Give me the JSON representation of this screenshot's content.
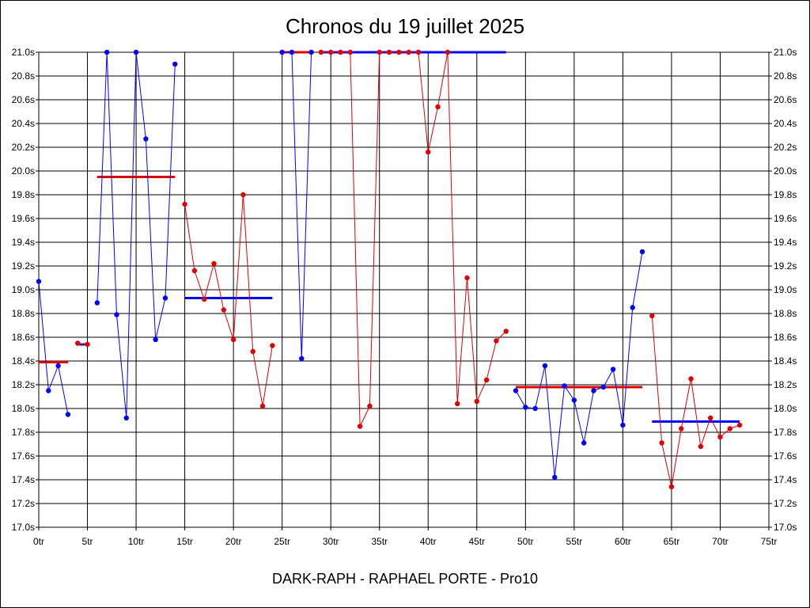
{
  "chart_data": {
    "type": "line",
    "title": "Chronos du 19 juillet 2025",
    "footer": "DARK-RAPH - RAPHAEL PORTE - Pro10",
    "xlim": [
      0,
      75
    ],
    "ylim": [
      17.0,
      21.0
    ],
    "x_ticks": [
      0,
      5,
      10,
      15,
      20,
      25,
      30,
      35,
      40,
      45,
      50,
      55,
      60,
      65,
      70,
      75
    ],
    "x_tick_labels": [
      "0tr",
      "5tr",
      "10tr",
      "15tr",
      "20tr",
      "25tr",
      "30tr",
      "35tr",
      "40tr",
      "45tr",
      "50tr",
      "55tr",
      "60tr",
      "65tr",
      "70tr",
      "75tr"
    ],
    "y_ticks": [
      17.0,
      17.2,
      17.4,
      17.6,
      17.8,
      18.0,
      18.2,
      18.4,
      18.6,
      18.8,
      19.0,
      19.2,
      19.4,
      19.6,
      19.8,
      20.0,
      20.2,
      20.4,
      20.6,
      20.8,
      21.0
    ],
    "y_tick_labels": [
      "17.0s",
      "17.2s",
      "17.4s",
      "17.6s",
      "17.8s",
      "18.0s",
      "18.2s",
      "18.4s",
      "18.6s",
      "18.8s",
      "19.0s",
      "19.2s",
      "19.4s",
      "19.6s",
      "19.8s",
      "20.0s",
      "20.2s",
      "20.4s",
      "20.6s",
      "20.8s",
      "21.0s"
    ],
    "grid": true,
    "segments": [
      {
        "color": "#0000ff",
        "points": [
          [
            0,
            19.07
          ],
          [
            1,
            18.15
          ],
          [
            2,
            18.36
          ],
          [
            3,
            17.95
          ]
        ],
        "average": {
          "x": [
            0,
            3
          ],
          "y": 18.39,
          "color": "#e00000"
        }
      },
      {
        "color": "#e00000",
        "points": [
          [
            4,
            18.55
          ],
          [
            5,
            18.54
          ]
        ],
        "average": {
          "x": [
            4,
            5
          ],
          "y": 18.54,
          "color": "#0000ff"
        }
      },
      {
        "color": "#0000ff",
        "points": [
          [
            6,
            18.89
          ],
          [
            7,
            21.0
          ],
          [
            8,
            18.79
          ],
          [
            9,
            17.92
          ],
          [
            10,
            21.0
          ],
          [
            11,
            20.27
          ],
          [
            12,
            18.58
          ],
          [
            13,
            18.93
          ],
          [
            14,
            20.9
          ]
        ],
        "average": {
          "x": [
            6,
            14
          ],
          "y": 19.95,
          "color": "#e00000"
        }
      },
      {
        "color": "#e00000",
        "points": [
          [
            15,
            19.72
          ],
          [
            16,
            19.16
          ],
          [
            17,
            18.92
          ],
          [
            18,
            19.22
          ],
          [
            19,
            18.83
          ],
          [
            20,
            18.58
          ],
          [
            21,
            19.8
          ],
          [
            22,
            18.48
          ],
          [
            23,
            18.02
          ],
          [
            24,
            18.53
          ]
        ],
        "average": {
          "x": [
            15,
            24
          ],
          "y": 18.93,
          "color": "#0000ff"
        }
      },
      {
        "color": "#0000ff",
        "points": [
          [
            25,
            21.0
          ],
          [
            26,
            21.0
          ],
          [
            27,
            18.42
          ],
          [
            28,
            21.0
          ]
        ],
        "average": {
          "x": [
            25,
            28
          ],
          "y": 21.0,
          "color": "#e00000"
        }
      },
      {
        "color": "#e00000",
        "points": [
          [
            29,
            21.0
          ],
          [
            30,
            21.0
          ],
          [
            31,
            21.0
          ],
          [
            32,
            21.0
          ],
          [
            33,
            17.85
          ],
          [
            34,
            18.02
          ],
          [
            35,
            21.0
          ],
          [
            36,
            21.0
          ],
          [
            37,
            21.0
          ],
          [
            38,
            21.0
          ],
          [
            39,
            21.0
          ],
          [
            40,
            20.16
          ],
          [
            41,
            20.54
          ],
          [
            42,
            21.0
          ],
          [
            43,
            18.04
          ],
          [
            44,
            19.1
          ],
          [
            45,
            18.06
          ],
          [
            46,
            18.24
          ],
          [
            47,
            18.57
          ],
          [
            48,
            18.65
          ]
        ],
        "average": {
          "x": [
            29,
            48
          ],
          "y": 21.0,
          "color": "#0000ff"
        }
      },
      {
        "color": "#0000ff",
        "points": [
          [
            49,
            18.15
          ],
          [
            50,
            18.01
          ],
          [
            51,
            18.0
          ],
          [
            52,
            18.36
          ],
          [
            53,
            17.42
          ],
          [
            54,
            18.19
          ],
          [
            55,
            18.07
          ],
          [
            56,
            17.71
          ],
          [
            57,
            18.15
          ],
          [
            58,
            18.18
          ],
          [
            59,
            18.33
          ],
          [
            60,
            17.86
          ],
          [
            61,
            18.85
          ],
          [
            62,
            19.32
          ]
        ],
        "average": {
          "x": [
            49,
            62
          ],
          "y": 18.18,
          "color": "#e00000"
        }
      },
      {
        "color": "#e00000",
        "points": [
          [
            63,
            18.78
          ],
          [
            64,
            17.71
          ],
          [
            65,
            17.34
          ],
          [
            66,
            17.83
          ],
          [
            67,
            18.25
          ],
          [
            68,
            17.68
          ],
          [
            69,
            17.92
          ],
          [
            70,
            17.76
          ],
          [
            71,
            17.83
          ],
          [
            72,
            17.86
          ]
        ],
        "average": {
          "x": [
            63,
            72
          ],
          "y": 17.89,
          "color": "#0000ff"
        }
      }
    ]
  }
}
